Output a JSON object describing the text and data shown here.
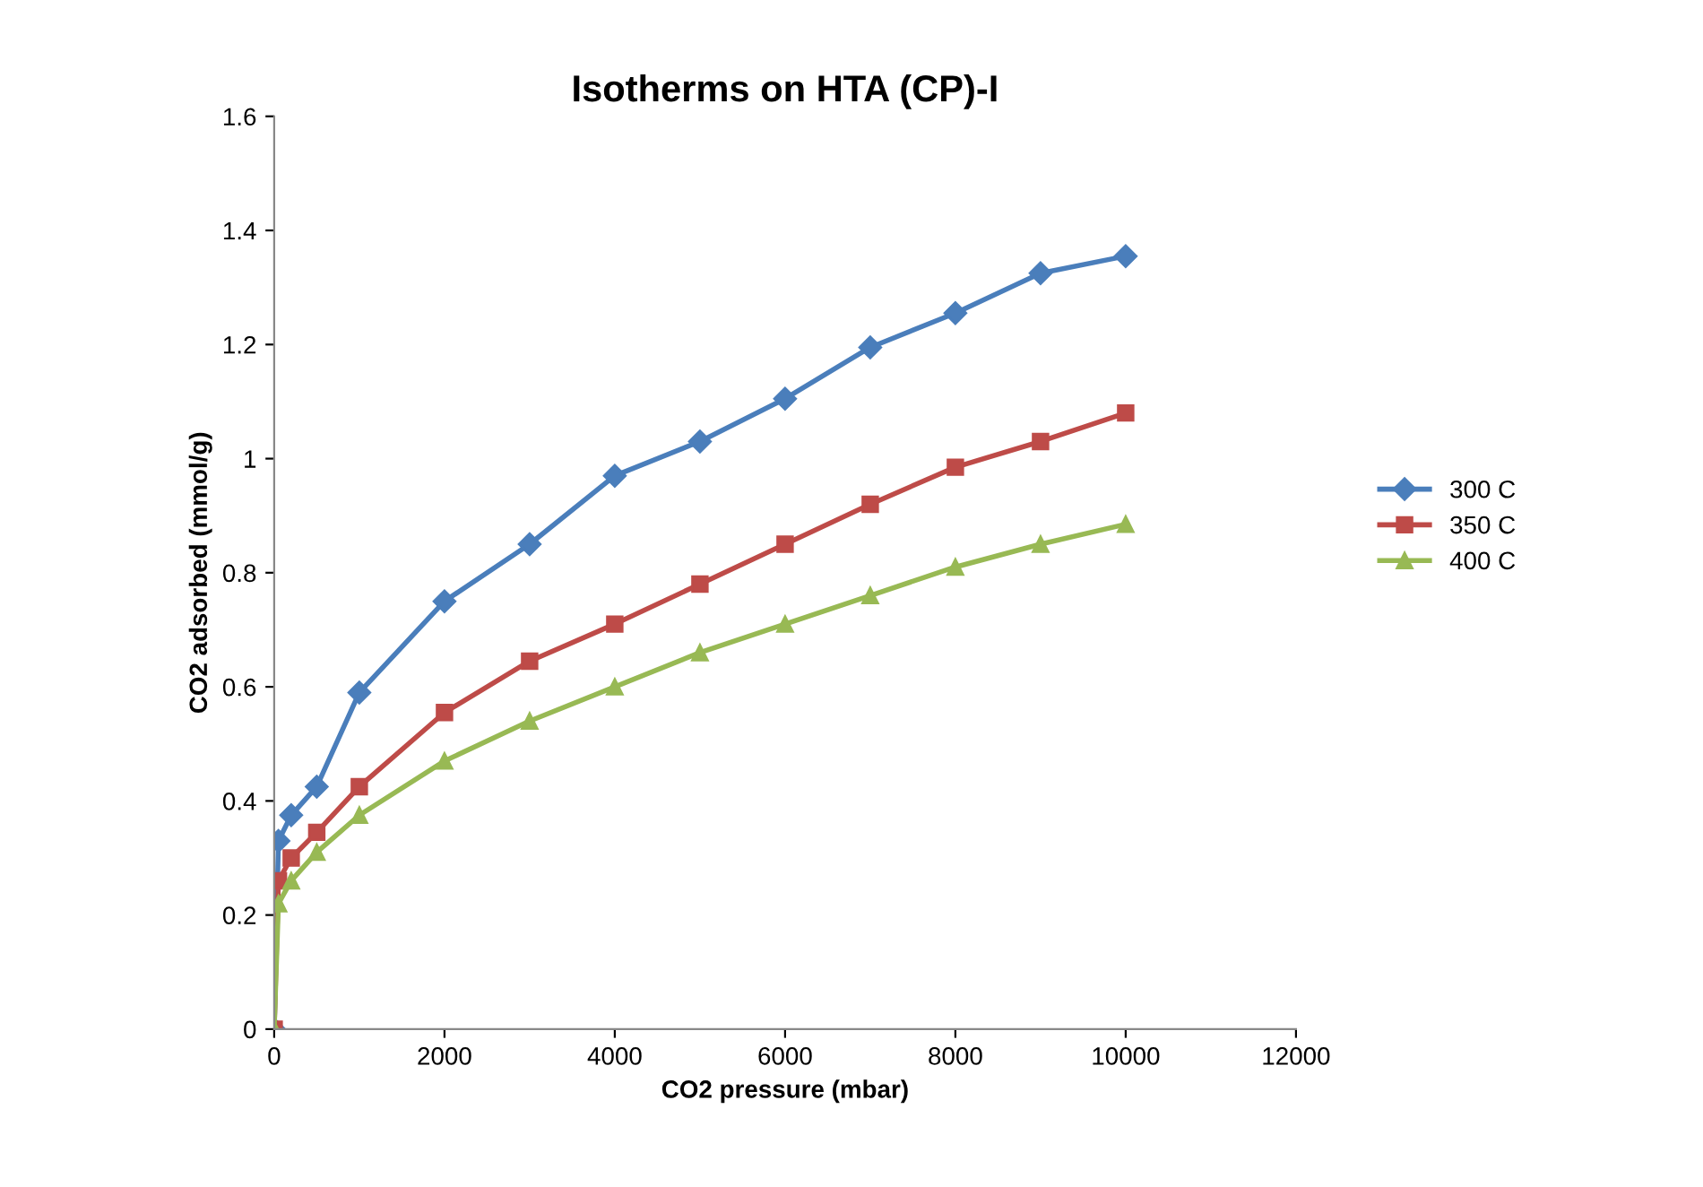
{
  "chart_data": {
    "type": "line",
    "title": "Isotherms on HTA (CP)-I",
    "xlabel": "CO2 pressure (mbar)",
    "ylabel": "CO2 adsorbed (mmol/g)",
    "x": [
      0,
      50,
      200,
      500,
      1000,
      2000,
      3000,
      4000,
      5000,
      6000,
      7000,
      8000,
      9000,
      10000
    ],
    "series": [
      {
        "name": "300 C",
        "color": "#4a7ebb",
        "marker": "diamond",
        "values": [
          0,
          0.33,
          0.375,
          0.425,
          0.59,
          0.75,
          0.85,
          0.97,
          1.03,
          1.105,
          1.195,
          1.255,
          1.325,
          1.355
        ]
      },
      {
        "name": "350 C",
        "color": "#be4b48",
        "marker": "square",
        "values": [
          0,
          0.26,
          0.3,
          0.345,
          0.425,
          0.555,
          0.645,
          0.71,
          0.78,
          0.85,
          0.92,
          0.985,
          1.03,
          1.08
        ]
      },
      {
        "name": "400 C",
        "color": "#98b954",
        "marker": "triangle",
        "values": [
          0,
          0.22,
          0.26,
          0.31,
          0.375,
          0.47,
          0.54,
          0.6,
          0.66,
          0.71,
          0.76,
          0.81,
          0.85,
          0.885
        ]
      }
    ],
    "xlim": [
      0,
      12000
    ],
    "xticks": [
      0,
      2000,
      4000,
      6000,
      8000,
      10000,
      12000
    ],
    "ylim": [
      0,
      1.6
    ],
    "yticks": [
      0,
      0.2,
      0.4,
      0.6,
      0.8,
      1,
      1.2,
      1.4,
      1.6
    ],
    "grid": false,
    "legend": "right"
  }
}
